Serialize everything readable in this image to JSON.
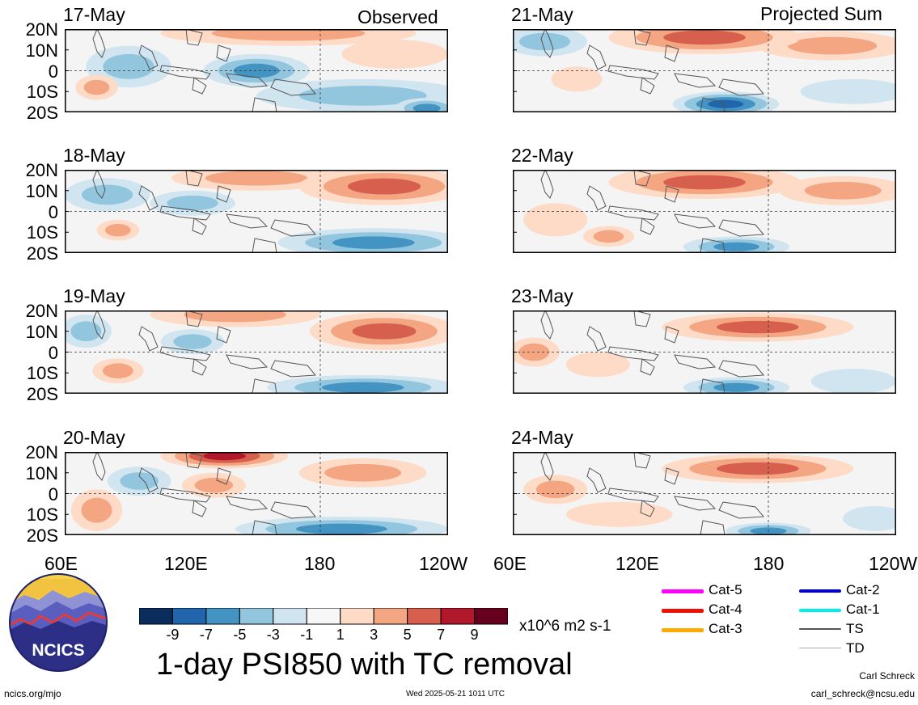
{
  "header": {
    "left_column": "Observed",
    "right_column": "Projected Sum"
  },
  "panels_left": [
    {
      "date": "17-May"
    },
    {
      "date": "18-May"
    },
    {
      "date": "19-May"
    },
    {
      "date": "20-May"
    }
  ],
  "panels_right": [
    {
      "date": "21-May"
    },
    {
      "date": "22-May"
    },
    {
      "date": "23-May"
    },
    {
      "date": "24-May"
    }
  ],
  "lat_ticks": [
    "20N",
    "10N",
    "0",
    "10S",
    "20S"
  ],
  "lon_ticks_left": [
    "60E",
    "120E",
    "180",
    "120W"
  ],
  "lon_ticks_right": [
    "60E",
    "120E",
    "180",
    "120W"
  ],
  "colorbar": {
    "colors": [
      "#0b2d5e",
      "#2166ac",
      "#4393c3",
      "#92c5de",
      "#d1e5f0",
      "#f7f7f7",
      "#fddbc7",
      "#f4a582",
      "#d6604d",
      "#b2182b",
      "#67001f"
    ],
    "labels": [
      "-9",
      "-7",
      "-5",
      "-3",
      "-1",
      "1",
      "3",
      "5",
      "7",
      "9"
    ],
    "units": "x10^6 m2 s-1"
  },
  "title": "1-day PSI850 with TC removal",
  "logo": {
    "text": "NCICS"
  },
  "legend": [
    {
      "label": "Cat-5",
      "color": "#ff00ff"
    },
    {
      "label": "Cat-4",
      "color": "#ee1100"
    },
    {
      "label": "Cat-3",
      "color": "#ffaa00"
    },
    {
      "label": "Cat-2",
      "color": "#0000dd"
    },
    {
      "label": "Cat-1",
      "color": "#00eeee"
    },
    {
      "label": "TS",
      "color": "#555555"
    },
    {
      "label": "TD",
      "color": "#aaaaaa"
    }
  ],
  "footer": {
    "url": "ncics.org/mjo",
    "timestamp": "Wed 2025-05-21 1011 UTC",
    "author": "Carl Schreck",
    "email": "carl_schreck@ncsu.edu"
  },
  "chart_data": {
    "type": "heatmap",
    "title": "1-day PSI850 with TC removal",
    "xlabel": "",
    "ylabel": "",
    "x_ticks": [
      "60E",
      "120E",
      "180",
      "120W"
    ],
    "xlim": [
      60,
      240
    ],
    "y_ticks": [
      "20N",
      "10N",
      "0",
      "10S",
      "20S"
    ],
    "ylim": [
      -20,
      20
    ],
    "units": "x10^6 m2 s-1",
    "contour_levels": [
      -9,
      -7,
      -5,
      -3,
      -1,
      1,
      3,
      5,
      7,
      9
    ],
    "panels": [
      {
        "date": "17-May",
        "group": "Observed",
        "blobs": [
          {
            "lon": 165,
            "lat": 18,
            "rx": 60,
            "ry": 6,
            "v": 3
          },
          {
            "lon": 90,
            "lat": 2,
            "rx": 20,
            "ry": 10,
            "v": -3
          },
          {
            "lon": 150,
            "lat": 0,
            "rx": 25,
            "ry": 8,
            "v": -5
          },
          {
            "lon": 75,
            "lat": -8,
            "rx": 10,
            "ry": 6,
            "v": 4
          },
          {
            "lon": 200,
            "lat": -12,
            "rx": 50,
            "ry": 8,
            "v": -4
          },
          {
            "lon": 230,
            "lat": -18,
            "rx": 15,
            "ry": 5,
            "v": -6
          },
          {
            "lon": 215,
            "lat": 8,
            "rx": 25,
            "ry": 7,
            "v": 2
          }
        ]
      },
      {
        "date": "18-May",
        "group": "Observed",
        "blobs": [
          {
            "lon": 210,
            "lat": 12,
            "rx": 40,
            "ry": 9,
            "v": 6
          },
          {
            "lon": 150,
            "lat": 16,
            "rx": 40,
            "ry": 6,
            "v": 4
          },
          {
            "lon": 80,
            "lat": 8,
            "rx": 20,
            "ry": 8,
            "v": -3
          },
          {
            "lon": 120,
            "lat": 4,
            "rx": 20,
            "ry": 6,
            "v": -3
          },
          {
            "lon": 85,
            "lat": -9,
            "rx": 10,
            "ry": 5,
            "v": 4
          },
          {
            "lon": 205,
            "lat": -15,
            "rx": 45,
            "ry": 7,
            "v": -5
          }
        ]
      },
      {
        "date": "19-May",
        "group": "Observed",
        "blobs": [
          {
            "lon": 210,
            "lat": 10,
            "rx": 35,
            "ry": 9,
            "v": 6
          },
          {
            "lon": 140,
            "lat": 18,
            "rx": 40,
            "ry": 6,
            "v": 4
          },
          {
            "lon": 70,
            "lat": 10,
            "rx": 12,
            "ry": 8,
            "v": -4
          },
          {
            "lon": 120,
            "lat": 5,
            "rx": 15,
            "ry": 6,
            "v": -3
          },
          {
            "lon": 85,
            "lat": -9,
            "rx": 12,
            "ry": 6,
            "v": 3
          },
          {
            "lon": 200,
            "lat": -17,
            "rx": 45,
            "ry": 6,
            "v": -5
          }
        ]
      },
      {
        "date": "20-May",
        "group": "Observed",
        "blobs": [
          {
            "lon": 135,
            "lat": 18,
            "rx": 30,
            "ry": 6,
            "v": 7
          },
          {
            "lon": 200,
            "lat": 10,
            "rx": 30,
            "ry": 7,
            "v": 4
          },
          {
            "lon": 75,
            "lat": -8,
            "rx": 12,
            "ry": 10,
            "v": 4
          },
          {
            "lon": 130,
            "lat": 4,
            "rx": 15,
            "ry": 6,
            "v": 3
          },
          {
            "lon": 95,
            "lat": 6,
            "rx": 15,
            "ry": 7,
            "v": -3
          },
          {
            "lon": 190,
            "lat": -17,
            "rx": 50,
            "ry": 6,
            "v": -5
          }
        ]
      },
      {
        "date": "21-May",
        "group": "Projected Sum",
        "blobs": [
          {
            "lon": 150,
            "lat": 16,
            "rx": 45,
            "ry": 8,
            "v": 6
          },
          {
            "lon": 210,
            "lat": 12,
            "rx": 35,
            "ry": 7,
            "v": 4
          },
          {
            "lon": 75,
            "lat": 14,
            "rx": 20,
            "ry": 7,
            "v": -4
          },
          {
            "lon": 90,
            "lat": -4,
            "rx": 12,
            "ry": 6,
            "v": 2
          },
          {
            "lon": 160,
            "lat": -16,
            "rx": 25,
            "ry": 6,
            "v": -7
          },
          {
            "lon": 220,
            "lat": -10,
            "rx": 25,
            "ry": 6,
            "v": -2
          }
        ]
      },
      {
        "date": "22-May",
        "group": "Projected Sum",
        "blobs": [
          {
            "lon": 150,
            "lat": 14,
            "rx": 45,
            "ry": 8,
            "v": 6
          },
          {
            "lon": 215,
            "lat": 10,
            "rx": 30,
            "ry": 7,
            "v": 4
          },
          {
            "lon": 80,
            "lat": -4,
            "rx": 15,
            "ry": 8,
            "v": 2
          },
          {
            "lon": 105,
            "lat": -12,
            "rx": 12,
            "ry": 5,
            "v": 3
          },
          {
            "lon": 165,
            "lat": -17,
            "rx": 25,
            "ry": 5,
            "v": -6
          }
        ]
      },
      {
        "date": "23-May",
        "group": "Projected Sum",
        "blobs": [
          {
            "lon": 175,
            "lat": 12,
            "rx": 45,
            "ry": 7,
            "v": 5
          },
          {
            "lon": 70,
            "lat": 0,
            "rx": 12,
            "ry": 7,
            "v": 3
          },
          {
            "lon": 100,
            "lat": -6,
            "rx": 15,
            "ry": 6,
            "v": 2
          },
          {
            "lon": 165,
            "lat": -17,
            "rx": 25,
            "ry": 5,
            "v": -5
          },
          {
            "lon": 220,
            "lat": -14,
            "rx": 20,
            "ry": 6,
            "v": -2
          }
        ]
      },
      {
        "date": "24-May",
        "group": "Projected Sum",
        "blobs": [
          {
            "lon": 175,
            "lat": 12,
            "rx": 45,
            "ry": 7,
            "v": 5
          },
          {
            "lon": 80,
            "lat": 2,
            "rx": 15,
            "ry": 7,
            "v": 3
          },
          {
            "lon": 110,
            "lat": -10,
            "rx": 25,
            "ry": 6,
            "v": 2
          },
          {
            "lon": 180,
            "lat": -18,
            "rx": 20,
            "ry": 4,
            "v": -5
          },
          {
            "lon": 230,
            "lat": -12,
            "rx": 15,
            "ry": 6,
            "v": -2
          }
        ]
      }
    ]
  }
}
